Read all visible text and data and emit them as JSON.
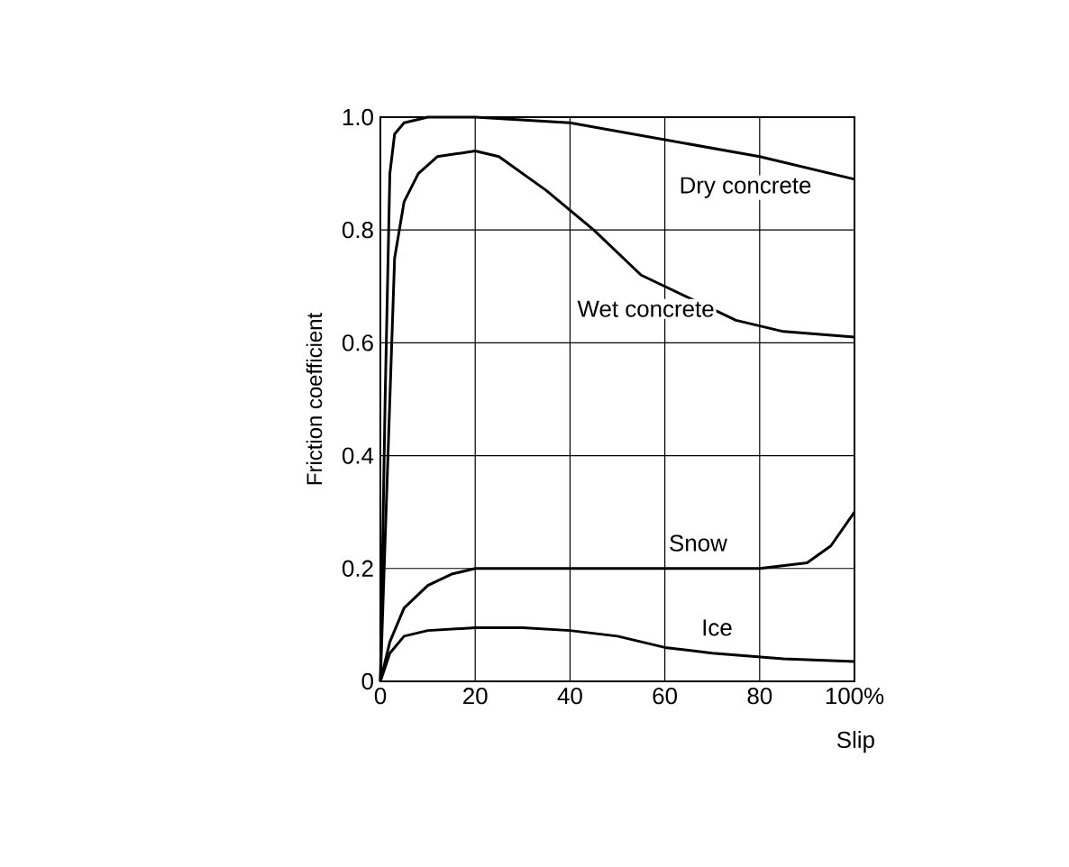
{
  "chart_data": {
    "type": "line",
    "xlabel": "Slip",
    "ylabel": "Friction coefficient",
    "xlim": [
      0,
      100
    ],
    "ylim": [
      0,
      1.0
    ],
    "xticks": [
      0,
      20,
      40,
      60,
      80,
      {
        "value": 100,
        "label": "100%"
      }
    ],
    "yticks": [
      0,
      0.2,
      0.4,
      0.6,
      0.8,
      {
        "value": 1.0,
        "label": "1.0"
      }
    ],
    "grid": true,
    "legend": false,
    "marker": "none",
    "line_style": "solid",
    "series": [
      {
        "name": "Dry concrete",
        "color": "#000000",
        "x": [
          0,
          1,
          2,
          3,
          5,
          10,
          20,
          40,
          60,
          80,
          100
        ],
        "values": [
          0,
          0.5,
          0.9,
          0.97,
          0.99,
          1.0,
          1.0,
          0.99,
          0.96,
          0.93,
          0.89
        ]
      },
      {
        "name": "Wet concrete",
        "color": "#000000",
        "x": [
          0,
          2,
          3,
          5,
          8,
          12,
          20,
          25,
          35,
          45,
          55,
          65,
          75,
          85,
          100
        ],
        "values": [
          0,
          0.5,
          0.75,
          0.85,
          0.9,
          0.93,
          0.94,
          0.93,
          0.87,
          0.8,
          0.72,
          0.68,
          0.64,
          0.62,
          0.61
        ]
      },
      {
        "name": "Snow",
        "color": "#000000",
        "x": [
          0,
          2,
          5,
          10,
          15,
          20,
          40,
          60,
          80,
          90,
          95,
          100
        ],
        "values": [
          0,
          0.07,
          0.13,
          0.17,
          0.19,
          0.2,
          0.2,
          0.2,
          0.2,
          0.21,
          0.24,
          0.3
        ]
      },
      {
        "name": "Ice",
        "color": "#000000",
        "x": [
          0,
          2,
          5,
          10,
          20,
          30,
          40,
          50,
          60,
          70,
          85,
          100
        ],
        "values": [
          0,
          0.05,
          0.08,
          0.09,
          0.095,
          0.095,
          0.09,
          0.08,
          0.06,
          0.05,
          0.04,
          0.035
        ]
      }
    ]
  }
}
